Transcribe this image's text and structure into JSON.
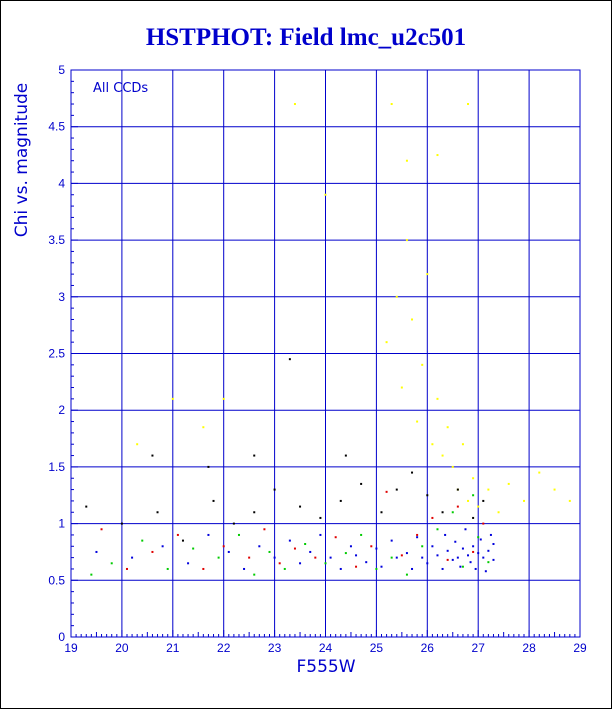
{
  "chart_data": {
    "type": "scatter",
    "title": "HSTPHOT: Field lmc_u2c501",
    "xlabel": "F555W",
    "ylabel": "Chi vs. magnitude",
    "annotation": "All CCDs",
    "xlim": [
      19,
      29
    ],
    "ylim": [
      0,
      5
    ],
    "xticks": [
      "19",
      "20",
      "21",
      "22",
      "23",
      "24",
      "25",
      "26",
      "27",
      "28",
      "29"
    ],
    "yticks": [
      "0",
      "0.5",
      "1",
      "1.5",
      "2",
      "2.5",
      "3",
      "3.5",
      "4",
      "4.5",
      "5"
    ],
    "grid": true,
    "colors": {
      "axis": "#0000cc",
      "title": "#0000cc",
      "black": "#000000",
      "red": "#e00000",
      "green": "#00cc00",
      "blue": "#0000dd",
      "yellow": "#ffff00"
    },
    "series_groups": [
      {
        "color": "blue",
        "points": [
          [
            19.5,
            0.75
          ],
          [
            20.2,
            0.7
          ],
          [
            20.8,
            0.8
          ],
          [
            21.3,
            0.65
          ],
          [
            21.7,
            0.9
          ],
          [
            22.1,
            0.75
          ],
          [
            22.4,
            0.6
          ],
          [
            22.7,
            0.8
          ],
          [
            23.0,
            0.7
          ],
          [
            23.3,
            0.85
          ],
          [
            23.5,
            0.65
          ],
          [
            23.7,
            0.75
          ],
          [
            23.9,
            0.9
          ],
          [
            24.1,
            0.7
          ],
          [
            24.3,
            0.6
          ],
          [
            24.5,
            0.8
          ],
          [
            24.6,
            0.72
          ],
          [
            24.8,
            0.66
          ],
          [
            25.0,
            0.78
          ],
          [
            25.1,
            0.62
          ],
          [
            25.3,
            0.85
          ],
          [
            25.4,
            0.7
          ],
          [
            25.6,
            0.74
          ],
          [
            25.7,
            0.6
          ],
          [
            25.8,
            0.88
          ],
          [
            25.9,
            0.7
          ],
          [
            26.0,
            0.65
          ],
          [
            26.1,
            0.8
          ],
          [
            26.2,
            0.72
          ],
          [
            26.3,
            0.6
          ],
          [
            26.35,
            0.9
          ],
          [
            26.4,
            0.76
          ],
          [
            26.5,
            0.68
          ],
          [
            26.55,
            0.84
          ],
          [
            26.6,
            0.7
          ],
          [
            26.65,
            0.62
          ],
          [
            26.7,
            0.78
          ],
          [
            26.75,
            0.95
          ],
          [
            26.8,
            0.72
          ],
          [
            26.85,
            0.66
          ],
          [
            26.9,
            0.8
          ],
          [
            26.95,
            0.6
          ],
          [
            27.0,
            0.74
          ],
          [
            27.05,
            0.86
          ],
          [
            27.1,
            0.7
          ],
          [
            27.15,
            0.58
          ],
          [
            27.2,
            0.76
          ],
          [
            27.25,
            0.9
          ],
          [
            27.3,
            0.68
          ],
          [
            27.3,
            0.82
          ]
        ]
      },
      {
        "color": "yellow",
        "points": [
          [
            25.2,
            2.6
          ],
          [
            25.4,
            3.0
          ],
          [
            25.5,
            2.2
          ],
          [
            25.6,
            3.5
          ],
          [
            25.7,
            2.8
          ],
          [
            25.8,
            1.9
          ],
          [
            25.9,
            2.4
          ],
          [
            26.0,
            3.2
          ],
          [
            26.1,
            1.7
          ],
          [
            26.2,
            2.1
          ],
          [
            26.3,
            1.6
          ],
          [
            26.4,
            1.85
          ],
          [
            26.5,
            1.5
          ],
          [
            26.6,
            1.3
          ],
          [
            26.7,
            1.7
          ],
          [
            26.8,
            1.2
          ],
          [
            26.9,
            1.4
          ],
          [
            27.0,
            1.15
          ],
          [
            27.2,
            1.3
          ],
          [
            27.4,
            1.1
          ],
          [
            27.6,
            1.35
          ],
          [
            27.9,
            1.2
          ],
          [
            28.2,
            1.45
          ],
          [
            28.5,
            1.3
          ],
          [
            28.8,
            1.2
          ],
          [
            25.3,
            4.7
          ],
          [
            25.6,
            4.2
          ],
          [
            26.2,
            4.25
          ],
          [
            26.8,
            4.7
          ],
          [
            24.0,
            3.9
          ],
          [
            23.4,
            4.7
          ],
          [
            22.0,
            2.1
          ],
          [
            21.6,
            1.85
          ],
          [
            21.0,
            2.1
          ],
          [
            20.3,
            1.7
          ]
        ]
      },
      {
        "color": "green",
        "points": [
          [
            19.4,
            0.55
          ],
          [
            19.8,
            0.65
          ],
          [
            20.4,
            0.85
          ],
          [
            20.9,
            0.6
          ],
          [
            21.4,
            0.78
          ],
          [
            21.9,
            0.7
          ],
          [
            22.3,
            0.9
          ],
          [
            22.6,
            0.55
          ],
          [
            22.9,
            0.75
          ],
          [
            23.2,
            0.6
          ],
          [
            23.6,
            0.82
          ],
          [
            24.0,
            0.65
          ],
          [
            24.4,
            0.74
          ],
          [
            24.7,
            0.9
          ],
          [
            25.0,
            0.6
          ],
          [
            25.3,
            0.7
          ],
          [
            25.6,
            0.55
          ],
          [
            25.9,
            0.8
          ],
          [
            26.2,
            0.95
          ],
          [
            26.5,
            1.1
          ],
          [
            26.7,
            0.62
          ],
          [
            26.9,
            1.25
          ],
          [
            27.0,
            0.88
          ],
          [
            27.2,
            0.66
          ]
        ]
      },
      {
        "color": "red",
        "points": [
          [
            19.6,
            0.95
          ],
          [
            20.1,
            0.6
          ],
          [
            20.6,
            0.75
          ],
          [
            21.1,
            0.9
          ],
          [
            21.6,
            0.6
          ],
          [
            22.0,
            0.8
          ],
          [
            22.5,
            0.7
          ],
          [
            22.8,
            0.95
          ],
          [
            23.1,
            0.65
          ],
          [
            23.4,
            0.78
          ],
          [
            23.8,
            0.7
          ],
          [
            24.2,
            0.88
          ],
          [
            24.6,
            0.62
          ],
          [
            24.9,
            0.8
          ],
          [
            25.2,
            1.28
          ],
          [
            25.5,
            0.72
          ],
          [
            25.8,
            0.9
          ],
          [
            26.1,
            1.05
          ],
          [
            26.4,
            0.68
          ],
          [
            26.6,
            1.15
          ],
          [
            26.9,
            0.75
          ],
          [
            27.1,
            1.0
          ]
        ]
      },
      {
        "color": "black",
        "points": [
          [
            19.3,
            1.15
          ],
          [
            20.0,
            1.0
          ],
          [
            20.7,
            1.1
          ],
          [
            21.2,
            0.85
          ],
          [
            21.8,
            1.2
          ],
          [
            22.2,
            1.0
          ],
          [
            22.6,
            1.1
          ],
          [
            23.0,
            1.3
          ],
          [
            23.5,
            1.15
          ],
          [
            23.9,
            1.05
          ],
          [
            24.3,
            1.2
          ],
          [
            24.7,
            1.35
          ],
          [
            25.1,
            1.1
          ],
          [
            25.4,
            1.3
          ],
          [
            25.7,
            1.45
          ],
          [
            26.0,
            1.25
          ],
          [
            26.3,
            1.1
          ],
          [
            26.6,
            1.3
          ],
          [
            26.9,
            1.05
          ],
          [
            27.1,
            1.2
          ],
          [
            20.6,
            1.6
          ],
          [
            21.7,
            1.5
          ],
          [
            22.6,
            1.6
          ],
          [
            23.3,
            2.45
          ],
          [
            24.4,
            1.6
          ]
        ]
      }
    ]
  }
}
